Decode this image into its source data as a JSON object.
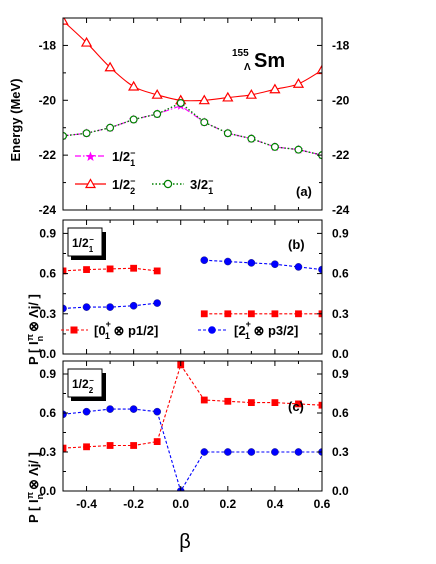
{
  "chart_data": [
    {
      "type": "line",
      "panel": "(a)",
      "title": "155 Λ Sm",
      "ylabel": "Energy (MeV)",
      "ylim": [
        -24,
        -17
      ],
      "xlim": [
        -0.5,
        0.6
      ],
      "yticks": [
        -24,
        -22,
        -20,
        -18
      ],
      "grid": false,
      "legend_placement": "bottom-left",
      "series": [
        {
          "name": "1/2₁⁻",
          "color": "#ff00ff",
          "marker": "star",
          "line": "dash-dot",
          "x": [
            -0.5,
            -0.4,
            -0.3,
            -0.2,
            -0.1,
            0.0,
            0.1,
            0.2,
            0.3,
            0.4,
            0.5,
            0.6
          ],
          "y": [
            -21.3,
            -21.2,
            -21.0,
            -20.7,
            -20.5,
            -20.2,
            -20.8,
            -21.2,
            -21.4,
            -21.7,
            -21.8,
            -22.0
          ]
        },
        {
          "name": "1/2₂⁻",
          "color": "#ff0000",
          "marker": "open-triangle",
          "line": "solid",
          "x": [
            -0.5,
            -0.4,
            -0.3,
            -0.2,
            -0.1,
            0.0,
            0.1,
            0.2,
            0.3,
            0.4,
            0.5,
            0.6
          ],
          "y": [
            -17.1,
            -17.9,
            -18.8,
            -19.5,
            -19.8,
            -20.0,
            -20.0,
            -19.9,
            -19.8,
            -19.6,
            -19.4,
            -18.9
          ]
        },
        {
          "name": "3/2₁⁻",
          "color": "#008000",
          "marker": "open-circle",
          "line": "dotted",
          "x": [
            -0.5,
            -0.4,
            -0.3,
            -0.2,
            -0.1,
            0.0,
            0.1,
            0.2,
            0.3,
            0.4,
            0.5,
            0.6
          ],
          "y": [
            -21.3,
            -21.2,
            -21.0,
            -20.7,
            -20.5,
            -20.1,
            -20.8,
            -21.2,
            -21.4,
            -21.7,
            -21.8,
            -22.0
          ]
        }
      ]
    },
    {
      "type": "scatter",
      "panel": "(b)",
      "state_label": "1/2₁⁻",
      "ylabel": "P [ Iₙ^π ⊗ Λj/ ]",
      "ylim": [
        0.0,
        1.0
      ],
      "xlim": [
        -0.5,
        0.6
      ],
      "yticks": [
        0.0,
        0.3,
        0.6,
        0.9
      ],
      "grid": false,
      "legend_placement": "bottom",
      "series": [
        {
          "name": "[0₁⁺ ⊗ p1/2]",
          "color": "#ff0000",
          "marker": "square",
          "line": "dashed",
          "segments": [
            {
              "x": [
                -0.5,
                -0.4,
                -0.3,
                -0.2,
                -0.1
              ],
              "y": [
                0.62,
                0.63,
                0.635,
                0.64,
                0.62
              ]
            },
            {
              "x": [
                0.1,
                0.2,
                0.3,
                0.4,
                0.5,
                0.6
              ],
              "y": [
                0.3,
                0.3,
                0.3,
                0.3,
                0.3,
                0.3
              ]
            }
          ]
        },
        {
          "name": "[2₁⁺ ⊗ p3/2]",
          "color": "#0000ff",
          "marker": "circle",
          "line": "dashed",
          "segments": [
            {
              "x": [
                -0.5,
                -0.4,
                -0.3,
                -0.2,
                -0.1
              ],
              "y": [
                0.34,
                0.35,
                0.35,
                0.36,
                0.38
              ]
            },
            {
              "x": [
                0.1,
                0.2,
                0.3,
                0.4,
                0.5,
                0.6
              ],
              "y": [
                0.7,
                0.69,
                0.68,
                0.67,
                0.65,
                0.63
              ]
            }
          ]
        }
      ]
    },
    {
      "type": "scatter",
      "panel": "(c)",
      "state_label": "1/2₂⁻",
      "ylabel": "P [ Iₙ^π ⊗ Λj/ ]",
      "xlabel": "β",
      "ylim": [
        0.0,
        1.0
      ],
      "xlim": [
        -0.5,
        0.6
      ],
      "yticks": [
        0.0,
        0.3,
        0.6,
        0.9
      ],
      "xticks": [
        -0.4,
        -0.2,
        0.0,
        0.2,
        0.4,
        0.6
      ],
      "grid": false,
      "series": [
        {
          "name": "[0₁⁺ ⊗ p1/2]",
          "color": "#ff0000",
          "marker": "square",
          "line": "dashed",
          "x": [
            -0.5,
            -0.4,
            -0.3,
            -0.2,
            -0.1,
            0.0,
            0.1,
            0.2,
            0.3,
            0.4,
            0.5,
            0.6
          ],
          "y": [
            0.33,
            0.34,
            0.35,
            0.35,
            0.38,
            0.97,
            0.7,
            0.69,
            0.68,
            0.68,
            0.67,
            0.66
          ]
        },
        {
          "name": "[2₁⁺ ⊗ p3/2]",
          "color": "#0000ff",
          "marker": "circle",
          "line": "dashed",
          "x": [
            -0.5,
            -0.4,
            -0.3,
            -0.2,
            -0.1,
            0.0,
            0.1,
            0.2,
            0.3,
            0.4,
            0.5,
            0.6
          ],
          "y": [
            0.59,
            0.61,
            0.63,
            0.63,
            0.61,
            0.0,
            0.3,
            0.3,
            0.3,
            0.3,
            0.3,
            0.3
          ]
        }
      ]
    }
  ],
  "labels": {
    "nucleus_mass": "155",
    "nucleus_lambda": "Λ",
    "nucleus_symbol": "Sm",
    "panel_a": "(a)",
    "panel_b": "(b)",
    "panel_c": "(c)",
    "energy_axis": "Energy (MeV)",
    "x_axis": "β",
    "state_b_main": "1/2",
    "state_b_sub": "1",
    "state_b_sup": "−",
    "state_c_main": "1/2",
    "state_c_sub": "2",
    "state_c_sup": "−",
    "legend_a_1_main": "1/2",
    "legend_a_1_sub": "1",
    "legend_a_1_sup": "−",
    "legend_a_2_main": "1/2",
    "legend_a_2_sub": "2",
    "legend_a_2_sup": "−",
    "legend_a_3_main": "3/2",
    "legend_a_3_sub": "1",
    "legend_a_3_sup": "−",
    "legend_b_1_open": "[0",
    "legend_b_1_sup": "+",
    "legend_b_1_sub": "1",
    "legend_b_1_rest": " ⊗ p1/2]",
    "legend_b_2_open": "[2",
    "legend_b_2_sup": "+",
    "legend_b_2_sub": "1",
    "legend_b_2_rest": " ⊗ p3/2]",
    "p_axis_p": "P [ I",
    "p_axis_sup": "π",
    "p_axis_sub": "n",
    "p_axis_rest": "⊗ Λj/ ]"
  }
}
